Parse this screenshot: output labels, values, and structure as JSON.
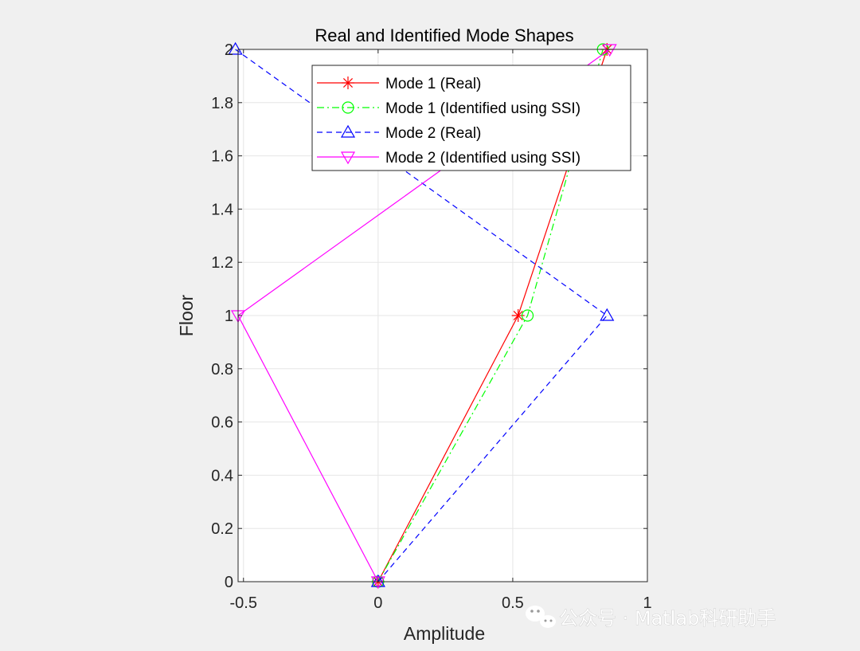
{
  "chart_data": {
    "type": "line",
    "title": "Real and Identified Mode Shapes",
    "xlabel": "Amplitude",
    "ylabel": "Floor",
    "xlim": [
      -0.52,
      1.0
    ],
    "ylim": [
      0,
      2
    ],
    "x_ticks": [
      -0.5,
      0,
      0.5,
      1
    ],
    "y_ticks": [
      0,
      0.2,
      0.4,
      0.6,
      0.8,
      1,
      1.2,
      1.4,
      1.6,
      1.8,
      2
    ],
    "grid": true,
    "legend_position": "top-right",
    "series": [
      {
        "name": "Mode 1 (Real)",
        "color": "#ff0000",
        "line": "solid",
        "marker": "asterisk",
        "points": [
          [
            0,
            0
          ],
          [
            0.52,
            1
          ],
          [
            0.85,
            2
          ]
        ]
      },
      {
        "name": "Mode 1 (Identified using SSI)",
        "color": "#00ff00",
        "line": "dashdot",
        "marker": "circle",
        "points": [
          [
            0,
            0
          ],
          [
            0.555,
            1
          ],
          [
            0.835,
            2
          ]
        ]
      },
      {
        "name": "Mode 2 (Real)",
        "color": "#0000ff",
        "line": "dashed",
        "marker": "triangle-up",
        "points": [
          [
            0,
            0
          ],
          [
            0.85,
            1
          ],
          [
            -0.53,
            2
          ]
        ]
      },
      {
        "name": "Mode 2 (Identified using SSI)",
        "color": "#ff00ff",
        "line": "solid",
        "marker": "triangle-down",
        "points": [
          [
            0,
            0
          ],
          [
            -0.52,
            1
          ],
          [
            0.86,
            2
          ]
        ]
      }
    ]
  },
  "watermark": {
    "text": "公众号 · Matlab科研助手",
    "icon": "wechat-icon"
  }
}
